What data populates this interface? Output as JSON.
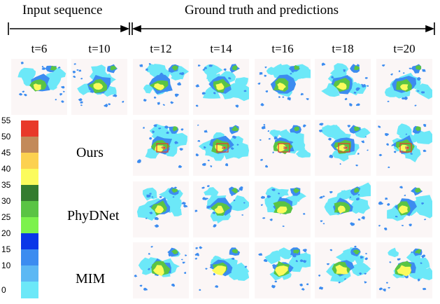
{
  "header": {
    "input_label": "Input sequence",
    "gt_label": "Ground truth and predictions"
  },
  "timesteps": [
    "t=6",
    "t=10",
    "t=12",
    "t=14",
    "t=16",
    "t=18",
    "t=20"
  ],
  "rows": [
    {
      "label": ""
    },
    {
      "label": "Ours"
    },
    {
      "label": "PhyDNet"
    },
    {
      "label": "MIM"
    }
  ],
  "colorbar": {
    "ticks": [
      "55",
      "50",
      "45",
      "40",
      "35",
      "30",
      "25",
      "20",
      "15",
      "10",
      "0"
    ],
    "colors": [
      "#e8392a",
      "#c38a5a",
      "#fcd150",
      "#fbfb5d",
      "#347c2f",
      "#5ac444",
      "#7cf24c",
      "#0a36e8",
      "#3c8cf0",
      "#5cb8f4",
      "#6ce8f8"
    ]
  },
  "colors": {
    "background": "#fbf6f6",
    "echo_light": "#6ce8f8",
    "echo_mid": "#3c8cf0",
    "echo_green": "#5ac444",
    "echo_yellow": "#fbfb5d",
    "echo_brown": "#c38a5a",
    "echo_red": "#e8392a"
  }
}
